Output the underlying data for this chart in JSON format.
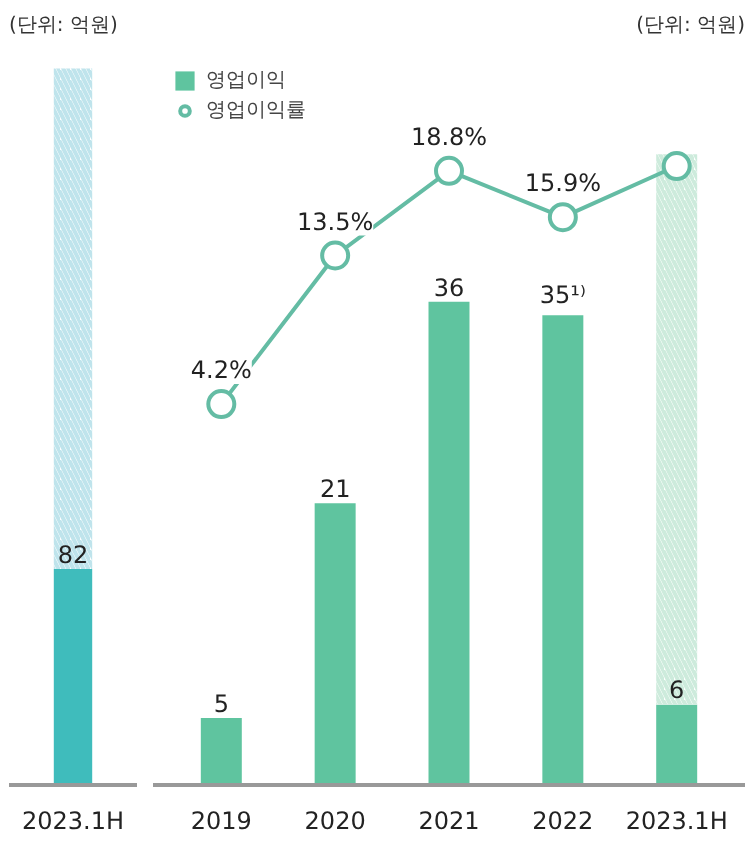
{
  "chart_data": [
    {
      "type": "bar",
      "title": "(단위: 억원)",
      "categories": [
        "2023.1H"
      ],
      "stacked": true,
      "tick_labels": "x",
      "grid": false,
      "series": [
        {
          "color": "#3fbcbc",
          "values": [
            82
          ],
          "value_labels": [
            "82"
          ]
        },
        {
          "color": "#bfe4ec",
          "values": [
            190
          ]
        }
      ]
    },
    {
      "type": "bar",
      "title": "(단위: 억원)",
      "categories": [
        "2019",
        "2020",
        "2021",
        "2022",
        "2023.1H"
      ],
      "stacked": true,
      "tick_labels": "x",
      "grid": false,
      "legend": "top left",
      "marker": "circle",
      "series": [
        {
          "name": "영업이익",
          "color": "#5fc49f",
          "values": [
            5,
            21,
            36,
            35,
            6
          ],
          "value_labels": [
            "5",
            "21",
            "36",
            "35¹⁾",
            "6"
          ]
        },
        {
          "color": "#cdebdc",
          "values": [
            null,
            null,
            null,
            null,
            41
          ]
        },
        {
          "name": "영업이익률",
          "type": "line",
          "axis": "y2",
          "color": "#64bca4",
          "values": [
            4.2,
            13.5,
            18.8,
            15.9,
            19.1
          ],
          "value_labels": [
            "4.2%",
            "13.5%",
            "18.8%",
            "15.9%",
            null
          ]
        }
      ]
    }
  ]
}
